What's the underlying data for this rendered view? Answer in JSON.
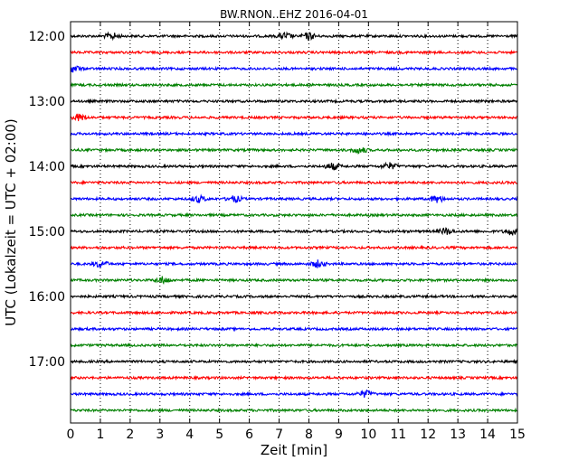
{
  "chart_data": {
    "type": "line",
    "title": "BW.RNON..EHZ 2016-04-01",
    "xlabel": "Zeit  [min]",
    "ylabel": "UTC (Lokalzeit = UTC + 02:00)",
    "xlim": [
      0,
      15
    ],
    "xticks": [
      "0",
      "1",
      "2",
      "3",
      "4",
      "5",
      "6",
      "7",
      "8",
      "9",
      "10",
      "11",
      "12",
      "13",
      "14",
      "15"
    ],
    "grid": "vertical dotted",
    "start_time": "12:00",
    "end_time": "17:45",
    "trace_interval_minutes": 15,
    "yticks": [
      "12:00",
      "13:00",
      "14:00",
      "15:00",
      "16:00",
      "17:00"
    ],
    "series": [
      {
        "start": "12:00",
        "color": "#000000"
      },
      {
        "start": "12:15",
        "color": "#ff0000"
      },
      {
        "start": "12:30",
        "color": "#0000ff"
      },
      {
        "start": "12:45",
        "color": "#008000"
      },
      {
        "start": "13:00",
        "color": "#000000"
      },
      {
        "start": "13:15",
        "color": "#ff0000"
      },
      {
        "start": "13:30",
        "color": "#0000ff"
      },
      {
        "start": "13:45",
        "color": "#008000"
      },
      {
        "start": "14:00",
        "color": "#000000"
      },
      {
        "start": "14:15",
        "color": "#ff0000"
      },
      {
        "start": "14:30",
        "color": "#0000ff"
      },
      {
        "start": "14:45",
        "color": "#008000"
      },
      {
        "start": "15:00",
        "color": "#000000"
      },
      {
        "start": "15:15",
        "color": "#ff0000"
      },
      {
        "start": "15:30",
        "color": "#0000ff"
      },
      {
        "start": "15:45",
        "color": "#008000"
      },
      {
        "start": "16:00",
        "color": "#000000"
      },
      {
        "start": "16:15",
        "color": "#ff0000"
      },
      {
        "start": "16:30",
        "color": "#0000ff"
      },
      {
        "start": "16:45",
        "color": "#008000"
      },
      {
        "start": "17:00",
        "color": "#000000"
      },
      {
        "start": "17:15",
        "color": "#ff0000"
      },
      {
        "start": "17:30",
        "color": "#0000ff"
      },
      {
        "start": "17:45",
        "color": "#008000"
      }
    ],
    "events": [
      {
        "start": "12:00",
        "minute": 1.4
      },
      {
        "start": "12:00",
        "minute": 7.2
      },
      {
        "start": "12:00",
        "minute": 8.0
      },
      {
        "start": "12:30",
        "minute": 0.1
      },
      {
        "start": "13:15",
        "minute": 0.3
      },
      {
        "start": "13:45",
        "minute": 9.7
      },
      {
        "start": "14:00",
        "minute": 8.8
      },
      {
        "start": "14:00",
        "minute": 10.7
      },
      {
        "start": "14:30",
        "minute": 4.3
      },
      {
        "start": "14:30",
        "minute": 5.5
      },
      {
        "start": "14:30",
        "minute": 12.3
      },
      {
        "start": "15:00",
        "minute": 12.6
      },
      {
        "start": "15:00",
        "minute": 14.8
      },
      {
        "start": "15:30",
        "minute": 1.0
      },
      {
        "start": "15:30",
        "minute": 8.3
      },
      {
        "start": "15:45",
        "minute": 3.1
      },
      {
        "start": "17:30",
        "minute": 9.9
      }
    ]
  }
}
